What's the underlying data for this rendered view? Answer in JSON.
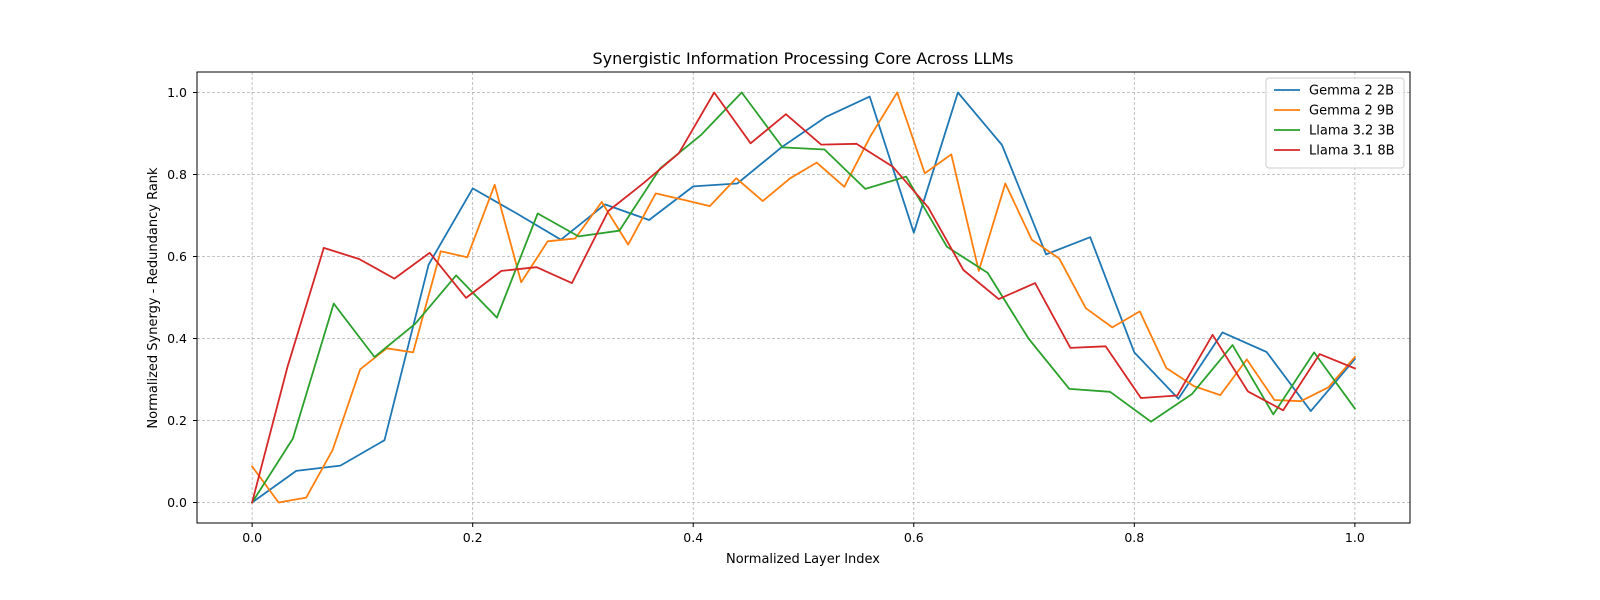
{
  "chart_data": {
    "type": "line",
    "title": "Synergistic Information Processing Core Across LLMs",
    "xlabel": "Normalized Layer Index",
    "ylabel": "Normalized Synergy - Redundancy Rank",
    "xlim": [
      -0.05,
      1.05
    ],
    "ylim": [
      -0.05,
      1.05
    ],
    "xticks": [
      0.0,
      0.2,
      0.4,
      0.6,
      0.8,
      1.0
    ],
    "xtick_labels": [
      "0.0",
      "0.2",
      "0.4",
      "0.6",
      "0.8",
      "1.0"
    ],
    "yticks": [
      0.0,
      0.2,
      0.4,
      0.6,
      0.8,
      1.0
    ],
    "ytick_labels": [
      "0.0",
      "0.2",
      "0.4",
      "0.6",
      "0.8",
      "1.0"
    ],
    "grid": true,
    "legend_position": "top-right",
    "series": [
      {
        "name": "Gemma 2 2B",
        "color": "#1f77b4",
        "points": [
          [
            0.0,
            0.0
          ],
          [
            0.04,
            0.077
          ],
          [
            0.08,
            0.09
          ],
          [
            0.12,
            0.152
          ],
          [
            0.16,
            0.58
          ],
          [
            0.2,
            0.766
          ],
          [
            0.24,
            0.705
          ],
          [
            0.28,
            0.641
          ],
          [
            0.32,
            0.727
          ],
          [
            0.36,
            0.689
          ],
          [
            0.4,
            0.771
          ],
          [
            0.44,
            0.778
          ],
          [
            0.48,
            0.866
          ],
          [
            0.52,
            0.94
          ],
          [
            0.56,
            0.99
          ],
          [
            0.6,
            0.658
          ],
          [
            0.64,
            1.0
          ],
          [
            0.68,
            0.872
          ],
          [
            0.72,
            0.605
          ],
          [
            0.76,
            0.647
          ],
          [
            0.8,
            0.366
          ],
          [
            0.84,
            0.253
          ],
          [
            0.88,
            0.415
          ],
          [
            0.92,
            0.367
          ],
          [
            0.96,
            0.223
          ],
          [
            1.0,
            0.35
          ]
        ]
      },
      {
        "name": "Gemma 2 9B",
        "color": "#ff7f0e",
        "points": [
          [
            0.0,
            0.088
          ],
          [
            0.024,
            0.0
          ],
          [
            0.049,
            0.012
          ],
          [
            0.073,
            0.128
          ],
          [
            0.098,
            0.325
          ],
          [
            0.122,
            0.376
          ],
          [
            0.146,
            0.366
          ],
          [
            0.171,
            0.613
          ],
          [
            0.195,
            0.598
          ],
          [
            0.22,
            0.775
          ],
          [
            0.244,
            0.537
          ],
          [
            0.268,
            0.637
          ],
          [
            0.293,
            0.644
          ],
          [
            0.317,
            0.733
          ],
          [
            0.341,
            0.629
          ],
          [
            0.366,
            0.754
          ],
          [
            0.39,
            0.739
          ],
          [
            0.415,
            0.723
          ],
          [
            0.439,
            0.791
          ],
          [
            0.463,
            0.735
          ],
          [
            0.488,
            0.791
          ],
          [
            0.512,
            0.829
          ],
          [
            0.537,
            0.77
          ],
          [
            0.561,
            0.895
          ],
          [
            0.585,
            1.0
          ],
          [
            0.61,
            0.803
          ],
          [
            0.634,
            0.849
          ],
          [
            0.659,
            0.565
          ],
          [
            0.683,
            0.778
          ],
          [
            0.707,
            0.641
          ],
          [
            0.732,
            0.595
          ],
          [
            0.756,
            0.474
          ],
          [
            0.78,
            0.427
          ],
          [
            0.805,
            0.466
          ],
          [
            0.829,
            0.328
          ],
          [
            0.854,
            0.284
          ],
          [
            0.878,
            0.262
          ],
          [
            0.902,
            0.349
          ],
          [
            0.927,
            0.25
          ],
          [
            0.951,
            0.247
          ],
          [
            0.976,
            0.281
          ],
          [
            1.0,
            0.355
          ]
        ]
      },
      {
        "name": "Llama 3.2 3B",
        "color": "#2ca02c",
        "points": [
          [
            0.0,
            0.0
          ],
          [
            0.037,
            0.156
          ],
          [
            0.074,
            0.485
          ],
          [
            0.111,
            0.355
          ],
          [
            0.148,
            0.436
          ],
          [
            0.185,
            0.554
          ],
          [
            0.222,
            0.451
          ],
          [
            0.259,
            0.705
          ],
          [
            0.296,
            0.649
          ],
          [
            0.333,
            0.663
          ],
          [
            0.37,
            0.815
          ],
          [
            0.407,
            0.896
          ],
          [
            0.444,
            1.0
          ],
          [
            0.481,
            0.866
          ],
          [
            0.519,
            0.861
          ],
          [
            0.556,
            0.765
          ],
          [
            0.593,
            0.795
          ],
          [
            0.63,
            0.624
          ],
          [
            0.667,
            0.56
          ],
          [
            0.704,
            0.4
          ],
          [
            0.741,
            0.277
          ],
          [
            0.778,
            0.27
          ],
          [
            0.815,
            0.197
          ],
          [
            0.852,
            0.264
          ],
          [
            0.889,
            0.384
          ],
          [
            0.926,
            0.215
          ],
          [
            0.963,
            0.366
          ],
          [
            1.0,
            0.229
          ]
        ]
      },
      {
        "name": "Llama 3.1 8B",
        "color": "#d62728",
        "points": [
          [
            0.0,
            0.0
          ],
          [
            0.032,
            0.33
          ],
          [
            0.065,
            0.621
          ],
          [
            0.097,
            0.594
          ],
          [
            0.129,
            0.546
          ],
          [
            0.161,
            0.609
          ],
          [
            0.194,
            0.499
          ],
          [
            0.226,
            0.565
          ],
          [
            0.258,
            0.574
          ],
          [
            0.29,
            0.535
          ],
          [
            0.323,
            0.711
          ],
          [
            0.355,
            0.779
          ],
          [
            0.387,
            0.852
          ],
          [
            0.419,
            1.0
          ],
          [
            0.452,
            0.876
          ],
          [
            0.484,
            0.947
          ],
          [
            0.516,
            0.873
          ],
          [
            0.548,
            0.875
          ],
          [
            0.581,
            0.819
          ],
          [
            0.613,
            0.72
          ],
          [
            0.645,
            0.567
          ],
          [
            0.677,
            0.496
          ],
          [
            0.71,
            0.535
          ],
          [
            0.742,
            0.377
          ],
          [
            0.774,
            0.381
          ],
          [
            0.806,
            0.255
          ],
          [
            0.839,
            0.261
          ],
          [
            0.871,
            0.409
          ],
          [
            0.903,
            0.271
          ],
          [
            0.935,
            0.225
          ],
          [
            0.968,
            0.362
          ],
          [
            1.0,
            0.327
          ]
        ]
      }
    ]
  }
}
